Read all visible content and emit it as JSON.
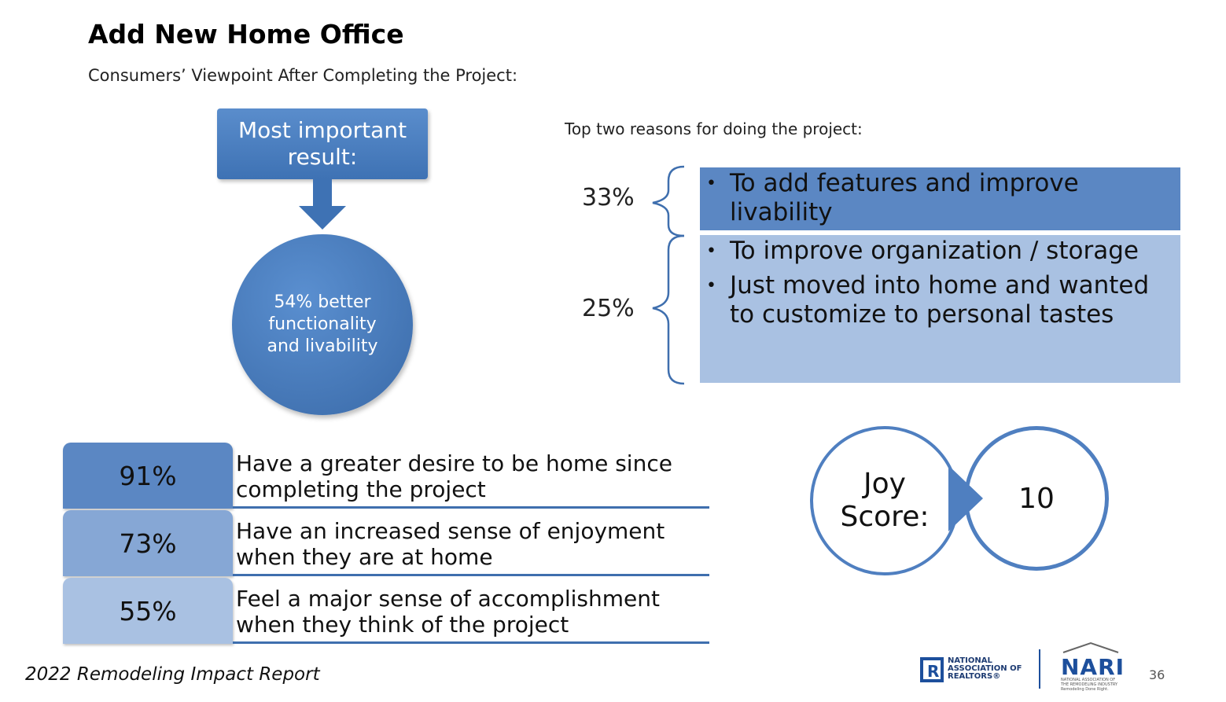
{
  "title": "Add New Home Office",
  "subtitle": "Consumers’ Viewpoint After Completing the Project:",
  "result": {
    "heading": "Most important result:",
    "value": "54% better functionality and livability"
  },
  "reasons": {
    "title": "Top two reasons for doing the project:",
    "groups": [
      {
        "pct": "33%",
        "items": [
          "To add features and improve livability"
        ]
      },
      {
        "pct": "25%",
        "items": [
          "To improve organization / storage",
          "Just moved into home and wanted to customize to personal tastes"
        ]
      }
    ]
  },
  "stats": [
    {
      "pct": "91%",
      "text": "Have a greater desire to be home since completing the project",
      "color": "#5b87c3"
    },
    {
      "pct": "73%",
      "text": "Have an increased sense of enjoyment when they are at home",
      "color": "#86a7d5"
    },
    {
      "pct": "55%",
      "text": "Feel a major sense of accomplishment when they think of the project",
      "color": "#a9c1e2"
    }
  ],
  "joy": {
    "label": "Joy Score:",
    "value": "10"
  },
  "footer": {
    "report": "2022 Remodeling Impact Report",
    "page": "36",
    "nar_logo_text": "NATIONAL ASSOCIATION OF REALTORS®",
    "nari_logo_text": "NARI",
    "nari_sub": "NATIONAL ASSOCIATION OF THE REMODELING INDUSTRY Remodeling Done Right."
  },
  "colors": {
    "primary": "#3e72b4",
    "dark_box": "#5b87c3",
    "light_box": "#a9c1e2"
  }
}
